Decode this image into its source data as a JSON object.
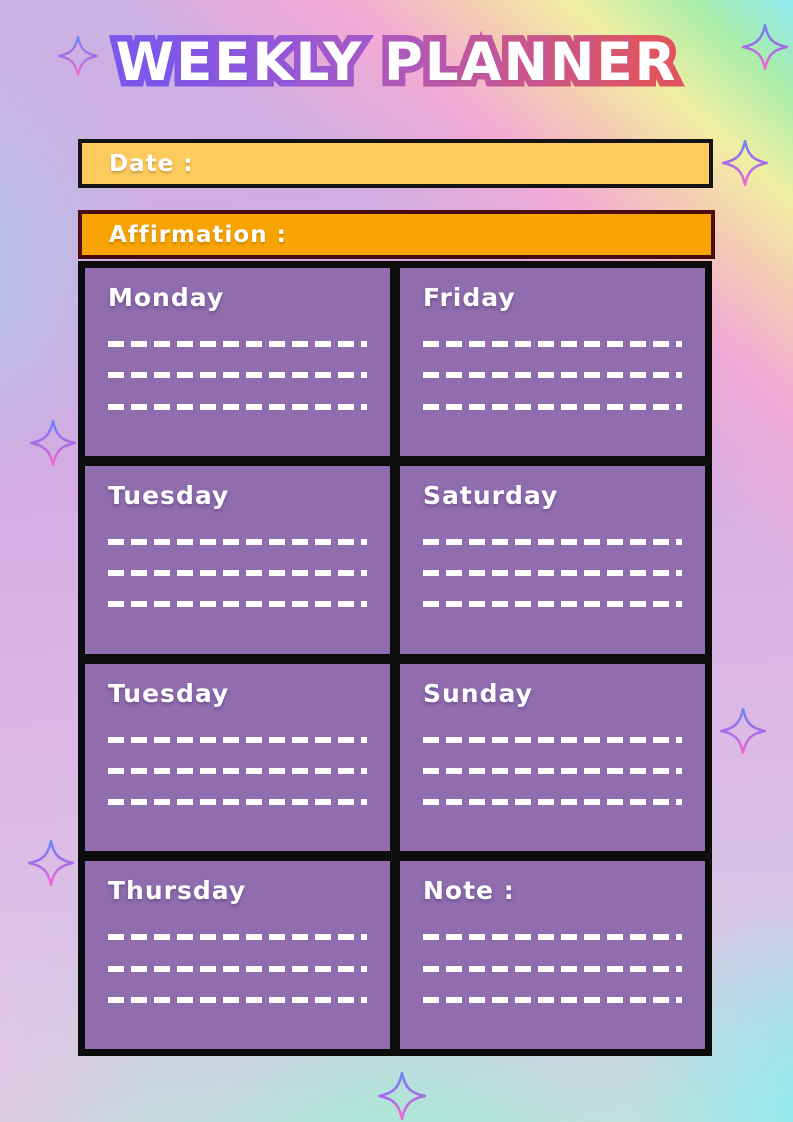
{
  "page": {
    "title": "WEEKLY PLANNER",
    "title_fill": "#FFFFFF",
    "title_outline_colors": [
      "#7C57E9",
      "#AC58C0",
      "#E0545F"
    ]
  },
  "bars": {
    "date": {
      "label": "Date :",
      "fill": "#FCCB5D",
      "border_color": "#141414"
    },
    "affirmation": {
      "label": "Affirmation :",
      "fill": "#F7A301",
      "border_color": "#4A0D0D"
    }
  },
  "planner": {
    "cell_fill": "#8F6DAE",
    "line_color": "#FFFFFF",
    "lines_per_cell": 3,
    "cells": [
      {
        "label": "Monday"
      },
      {
        "label": "Friday"
      },
      {
        "label": "Tuesday"
      },
      {
        "label": "Saturday"
      },
      {
        "label": "Tuesday"
      },
      {
        "label": "Sunday"
      },
      {
        "label": "Thursday"
      },
      {
        "label": "Note :"
      }
    ]
  },
  "decorations": {
    "sparkle_icon": "four-pointed-sparkle",
    "sparkle_count": 7,
    "sparkle_gradient": {
      "top": "#6E86F5",
      "middle": "#A66CE8",
      "bottom": "#F56BD0"
    }
  }
}
